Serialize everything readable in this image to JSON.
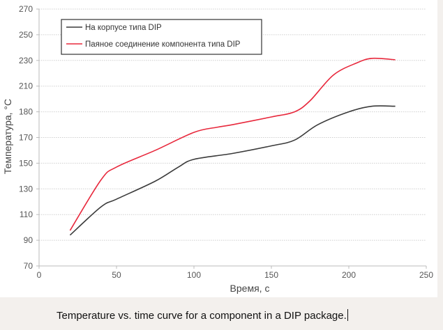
{
  "chart_data": {
    "type": "line",
    "xlabel": "Время, с",
    "ylabel": "Температура, °C",
    "xlim": [
      0,
      250
    ],
    "x_ticks": [
      0,
      50,
      100,
      150,
      200,
      250
    ],
    "y_ticks": [
      70,
      90,
      110,
      130,
      150,
      170,
      180,
      210,
      230,
      250,
      270
    ],
    "grid": "horizontal dotted",
    "legend_position": "top-left",
    "series": [
      {
        "name": "На корпусе типа DIP",
        "color": "#3a3a3a",
        "x": [
          20,
          40,
          50,
          75,
          90,
          100,
          125,
          150,
          165,
          180,
          200,
          215,
          230
        ],
        "y": [
          94,
          116,
          122,
          136,
          147,
          153,
          157.6,
          163.5,
          168,
          175,
          180,
          186.5,
          186.5
        ]
      },
      {
        "name": "Паяное соединение компонента типа DIP",
        "color": "#e8283c",
        "x": [
          20,
          40,
          50,
          75,
          100,
          115,
          125,
          150,
          165,
          175,
          190,
          205,
          215,
          230
        ],
        "y": [
          97.6,
          137,
          147,
          160,
          172,
          174,
          175,
          178,
          180,
          193,
          218.6,
          228,
          231.6,
          230.5
        ]
      }
    ]
  },
  "caption": "Temperature vs. time curve for a component in a DIP package."
}
